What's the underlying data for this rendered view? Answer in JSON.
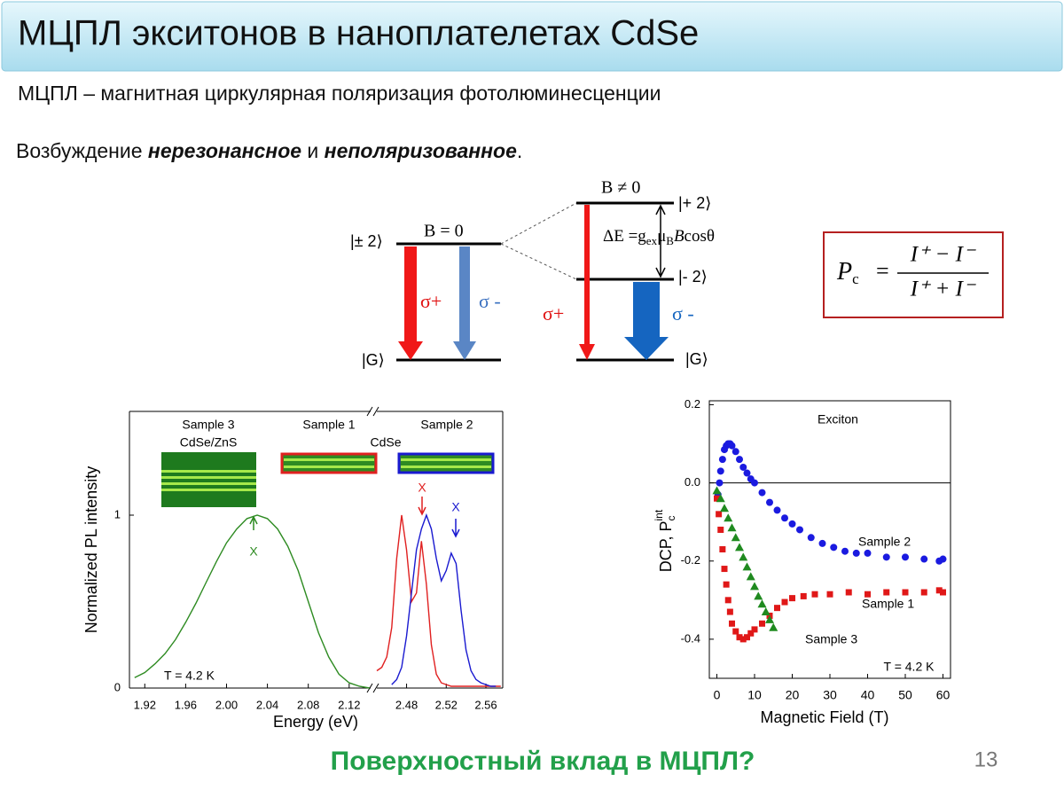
{
  "header": {
    "title": "МЦПЛ экситонов в наноплателетах CdSe"
  },
  "subtitle": "МЦПЛ – магнитная циркулярная поляризация фотолюминесценции",
  "excitation": [
    "Возбуждение ",
    "нерезонансное",
    " и ",
    "неполяризованное",
    "."
  ],
  "diagram": {
    "left": {
      "state": "|± 2⟩",
      "field": "B = 0",
      "sigma_plus": "σ+",
      "sigma_minus": "σ -",
      "ground": "|G⟩"
    },
    "right": {
      "field": "B ≠ 0",
      "upper": "|+ 2⟩",
      "lower": "|- 2⟩",
      "splitting": [
        "ΔE =g",
        "ex",
        "μ",
        "B",
        "B",
        "cosθ"
      ],
      "sigma_plus": "σ+",
      "sigma_minus": "σ -",
      "ground": "|G⟩"
    },
    "formula": {
      "lhs": "P",
      "lhs_sub": "c",
      "eq": "=",
      "numerator": "I⁺ − I⁻",
      "denominator": "I⁺ + I⁻"
    }
  },
  "chart_data": [
    {
      "type": "line",
      "y_label": "Normalized PL intensity",
      "x_label": "Energy (eV)",
      "x_segments": [
        {
          "xlim": [
            1.905,
            2.141
          ],
          "xticks": [
            1.92,
            1.96,
            {
              "value": 2,
              "label": "2.00"
            },
            2.04,
            2.08,
            2.12
          ]
        },
        {
          "xlim": [
            2.45,
            2.577
          ],
          "xticks": [
            2.48,
            2.52,
            2.56
          ]
        }
      ],
      "ylim": [
        0,
        1.6
      ],
      "yticks": [
        0,
        1
      ],
      "series": [
        {
          "color": "#2e8b22",
          "segment": 0,
          "x": [
            1.91,
            1.92,
            1.93,
            1.94,
            1.95,
            1.96,
            1.97,
            1.98,
            1.99,
            2.0,
            2.01,
            2.02,
            2.03,
            2.04,
            2.05,
            2.06,
            2.07,
            2.08,
            2.09,
            2.1,
            2.11,
            2.12,
            2.13,
            2.14
          ],
          "values": [
            0.06,
            0.09,
            0.14,
            0.2,
            0.28,
            0.38,
            0.49,
            0.61,
            0.73,
            0.84,
            0.92,
            0.98,
            1.0,
            0.98,
            0.92,
            0.82,
            0.68,
            0.5,
            0.32,
            0.18,
            0.08,
            0.03,
            0.01,
            0
          ]
        },
        {
          "color": "#e02020",
          "segment": 1,
          "x": [
            2.45,
            2.455,
            2.46,
            2.465,
            2.47,
            2.475,
            2.48,
            2.485,
            2.49,
            2.495,
            2.5,
            2.505,
            2.51,
            2.515,
            2.52,
            2.525,
            2.53,
            2.535,
            2.54,
            2.545,
            2.55,
            2.555,
            2.56,
            2.565,
            2.57,
            2.575
          ],
          "values": [
            0.1,
            0.12,
            0.18,
            0.35,
            0.75,
            1.0,
            0.8,
            0.5,
            0.55,
            0.85,
            0.6,
            0.25,
            0.08,
            0.03,
            0.02,
            0.01,
            0.01,
            0.01,
            0.01,
            0.01,
            0.01,
            0.01,
            0.01,
            0.01,
            0.01,
            0.01
          ]
        },
        {
          "color": "#1a1ad0",
          "segment": 1,
          "x": [
            2.465,
            2.47,
            2.475,
            2.48,
            2.485,
            2.49,
            2.495,
            2.5,
            2.505,
            2.51,
            2.515,
            2.52,
            2.525,
            2.53,
            2.535,
            2.54,
            2.545,
            2.55,
            2.555,
            2.56,
            2.565,
            2.57
          ],
          "values": [
            0.02,
            0.05,
            0.12,
            0.3,
            0.55,
            0.8,
            0.92,
            1.0,
            0.92,
            0.75,
            0.62,
            0.68,
            0.78,
            0.72,
            0.45,
            0.22,
            0.1,
            0.05,
            0.03,
            0.02,
            0.01,
            0.01
          ]
        }
      ],
      "annotations": [
        "Sample 3",
        "CdSe/ZnS",
        "Sample 1",
        "CdSe",
        "Sample 2",
        "X",
        "X",
        "X",
        "T = 4.2 K"
      ]
    },
    {
      "type": "scatter",
      "y_label": [
        "DCP, P",
        "c",
        "int"
      ],
      "x_label": "Magnetic Field (T)",
      "xlim": [
        -2,
        62
      ],
      "xticks": [
        0,
        10,
        20,
        30,
        40,
        50,
        60
      ],
      "ylim": [
        -0.5,
        0.21
      ],
      "yticks": [
        -0.4,
        -0.2,
        {
          "value": 0,
          "label": "0.0"
        },
        0.2
      ],
      "reference_line": 0,
      "series": [
        {
          "name": "Sample 2",
          "color": "#1a1ae0",
          "marker": "circle",
          "x": [
            0.3,
            0.7,
            1,
            1.5,
            2,
            2.5,
            3,
            3.5,
            4,
            5,
            6,
            7,
            8,
            9,
            10,
            12,
            14,
            16,
            18,
            20,
            22,
            25,
            28,
            31,
            34,
            37,
            40,
            45,
            50,
            55,
            59,
            60
          ],
          "values": [
            -0.03,
            0,
            0.03,
            0.06,
            0.085,
            0.095,
            0.1,
            0.1,
            0.095,
            0.08,
            0.06,
            0.04,
            0.025,
            0.01,
            0,
            -0.025,
            -0.05,
            -0.07,
            -0.09,
            -0.105,
            -0.12,
            -0.14,
            -0.155,
            -0.165,
            -0.175,
            -0.18,
            -0.18,
            -0.19,
            -0.19,
            -0.195,
            -0.2,
            -0.195
          ]
        },
        {
          "name": "Sample 1",
          "color": "#e01818",
          "marker": "square",
          "x": [
            0,
            0.5,
            1,
            1.5,
            2,
            2.5,
            3,
            3.5,
            4,
            5,
            6,
            7,
            8,
            9,
            10,
            12,
            14,
            16,
            18,
            20,
            23,
            26,
            30,
            35,
            40,
            45,
            50,
            55,
            59,
            60
          ],
          "values": [
            -0.04,
            -0.08,
            -0.12,
            -0.17,
            -0.22,
            -0.26,
            -0.3,
            -0.33,
            -0.36,
            -0.38,
            -0.395,
            -0.4,
            -0.395,
            -0.385,
            -0.375,
            -0.36,
            -0.34,
            -0.32,
            -0.305,
            -0.295,
            -0.29,
            -0.285,
            -0.285,
            -0.28,
            -0.285,
            -0.28,
            -0.28,
            -0.28,
            -0.275,
            -0.28
          ]
        },
        {
          "name": "Sample 3",
          "color": "#1f8a1f",
          "marker": "triangle",
          "x": [
            0,
            1,
            2,
            3,
            4,
            5,
            6,
            7,
            8,
            9,
            10,
            11,
            12,
            13,
            14,
            15
          ],
          "values": [
            -0.02,
            -0.04,
            -0.065,
            -0.09,
            -0.115,
            -0.14,
            -0.165,
            -0.19,
            -0.215,
            -0.24,
            -0.265,
            -0.29,
            -0.31,
            -0.33,
            -0.35,
            -0.37
          ]
        }
      ],
      "annotations": [
        "Exciton",
        "T = 4.2 K"
      ]
    }
  ],
  "footer": {
    "question": "Поверхностный вклад в МЦПЛ?",
    "page_number": 13
  }
}
